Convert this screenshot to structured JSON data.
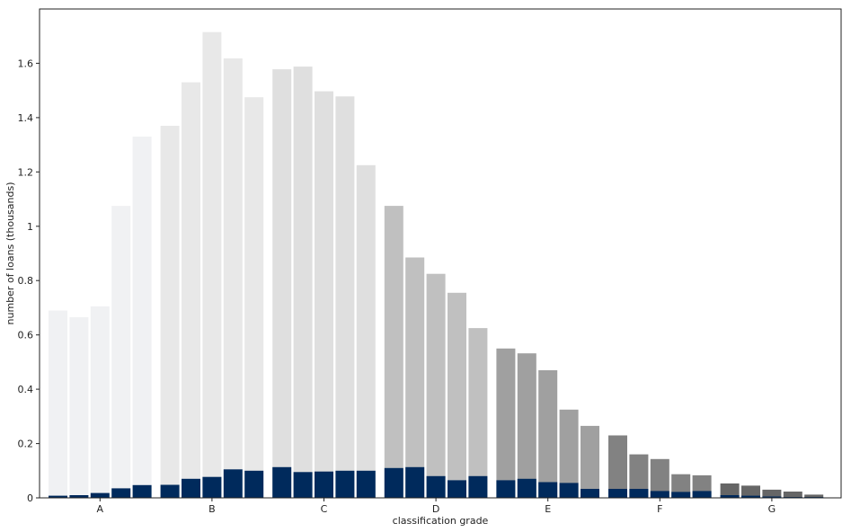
{
  "chart_data": {
    "type": "bar",
    "xlabel": "classification grade",
    "ylabel": "number of loans (thousands)",
    "ylim": [
      0,
      1.8
    ],
    "yticks": [
      0,
      0.2,
      0.4,
      0.6,
      0.8,
      1,
      1.2,
      1.4,
      1.6
    ],
    "ytick_labels": [
      "0",
      "0.2",
      "0.4",
      "0.6",
      "0.8",
      "1",
      "1.2",
      "1.4",
      "1.6"
    ],
    "grid": false,
    "bar_mode": "overlay",
    "highlight_color": "#002a5c",
    "groups": [
      {
        "label": "A",
        "color": "#f0f1f3",
        "totals": [
          0.69,
          0.665,
          0.705,
          1.075,
          1.33
        ],
        "highlight": [
          0.008,
          0.01,
          0.018,
          0.035,
          0.047
        ]
      },
      {
        "label": "B",
        "color": "#e8e8e8",
        "totals": [
          1.37,
          1.53,
          1.715,
          1.618,
          1.475
        ],
        "highlight": [
          0.048,
          0.07,
          0.077,
          0.105,
          0.1
        ]
      },
      {
        "label": "C",
        "color": "#dfdfdf",
        "totals": [
          1.578,
          1.588,
          1.497,
          1.478,
          1.225
        ],
        "highlight": [
          0.113,
          0.095,
          0.097,
          0.1,
          0.1
        ]
      },
      {
        "label": "D",
        "color": "#c0c0c0",
        "totals": [
          1.075,
          0.885,
          0.825,
          0.755,
          0.625
        ],
        "highlight": [
          0.11,
          0.113,
          0.08,
          0.065,
          0.08
        ]
      },
      {
        "label": "E",
        "color": "#a0a0a0",
        "totals": [
          0.55,
          0.532,
          0.47,
          0.325,
          0.265
        ],
        "highlight": [
          0.065,
          0.07,
          0.058,
          0.055,
          0.033
        ]
      },
      {
        "label": "F",
        "color": "#828282",
        "totals": [
          0.23,
          0.16,
          0.143,
          0.087,
          0.083
        ],
        "highlight": [
          0.033,
          0.033,
          0.025,
          0.022,
          0.025
        ]
      },
      {
        "label": "G",
        "color": "#666666",
        "totals": [
          0.053,
          0.045,
          0.03,
          0.023,
          0.012
        ],
        "highlight": [
          0.01,
          0.008,
          0.005,
          0.003,
          0.003
        ]
      }
    ]
  }
}
